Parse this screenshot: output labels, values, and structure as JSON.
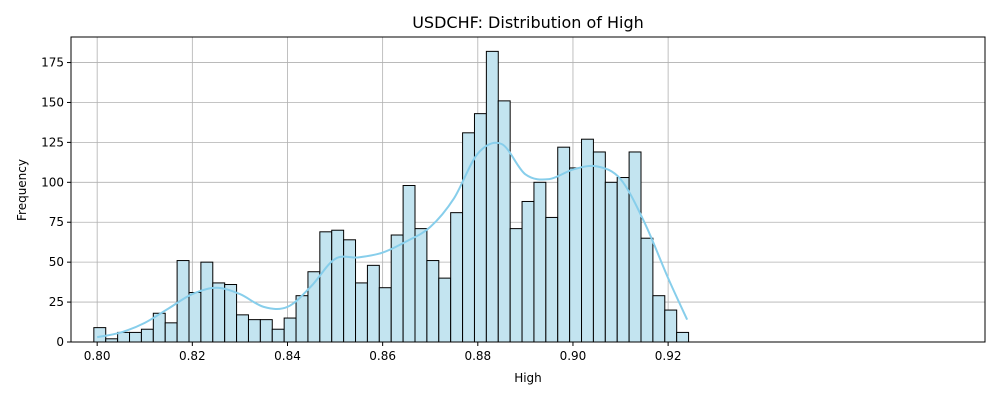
{
  "chart_data": {
    "type": "bar",
    "title": "USDCHF: Distribution of High",
    "xlabel": "High",
    "ylabel": "Frequency",
    "xlim": [
      0.7945,
      0.9866
    ],
    "ylim": [
      0,
      191
    ],
    "xticks": [
      0.8,
      0.82,
      0.84,
      0.86,
      0.88,
      0.9,
      0.92
    ],
    "xtick_labels": [
      "0.80",
      "0.82",
      "0.84",
      "0.86",
      "0.88",
      "0.90",
      "0.92"
    ],
    "yticks": [
      0,
      25,
      50,
      75,
      100,
      125,
      150,
      175
    ],
    "ytick_labels": [
      "0",
      "25",
      "50",
      "75",
      "100",
      "125",
      "150",
      "175"
    ],
    "grid": true,
    "bar_color": "#c3e4f0",
    "bar_edge_color": "#000000",
    "kde_color": "#87ceeb",
    "bins": {
      "start": 0.7993,
      "width": 0.0025,
      "counts": [
        9,
        2,
        6,
        6,
        8,
        18,
        12,
        51,
        31,
        50,
        37,
        36,
        17,
        14,
        14,
        8,
        15,
        29,
        44,
        69,
        70,
        64,
        37,
        48,
        34,
        67,
        98,
        71,
        51,
        40,
        81,
        131,
        143,
        182,
        151,
        71,
        88,
        100,
        78,
        122,
        109,
        127,
        119,
        100,
        103,
        119,
        65,
        29,
        20,
        6
      ]
    },
    "kde": {
      "x": [
        0.8,
        0.805,
        0.81,
        0.815,
        0.82,
        0.825,
        0.83,
        0.835,
        0.84,
        0.845,
        0.85,
        0.855,
        0.86,
        0.865,
        0.87,
        0.875,
        0.88,
        0.885,
        0.89,
        0.895,
        0.9,
        0.905,
        0.91,
        0.915,
        0.92,
        0.924
      ],
      "y": [
        3,
        6,
        12,
        21,
        30,
        34,
        30,
        22,
        22,
        35,
        52,
        53,
        56,
        63,
        72,
        90,
        118,
        124,
        105,
        102,
        108,
        110,
        102,
        75,
        40,
        14
      ]
    }
  }
}
